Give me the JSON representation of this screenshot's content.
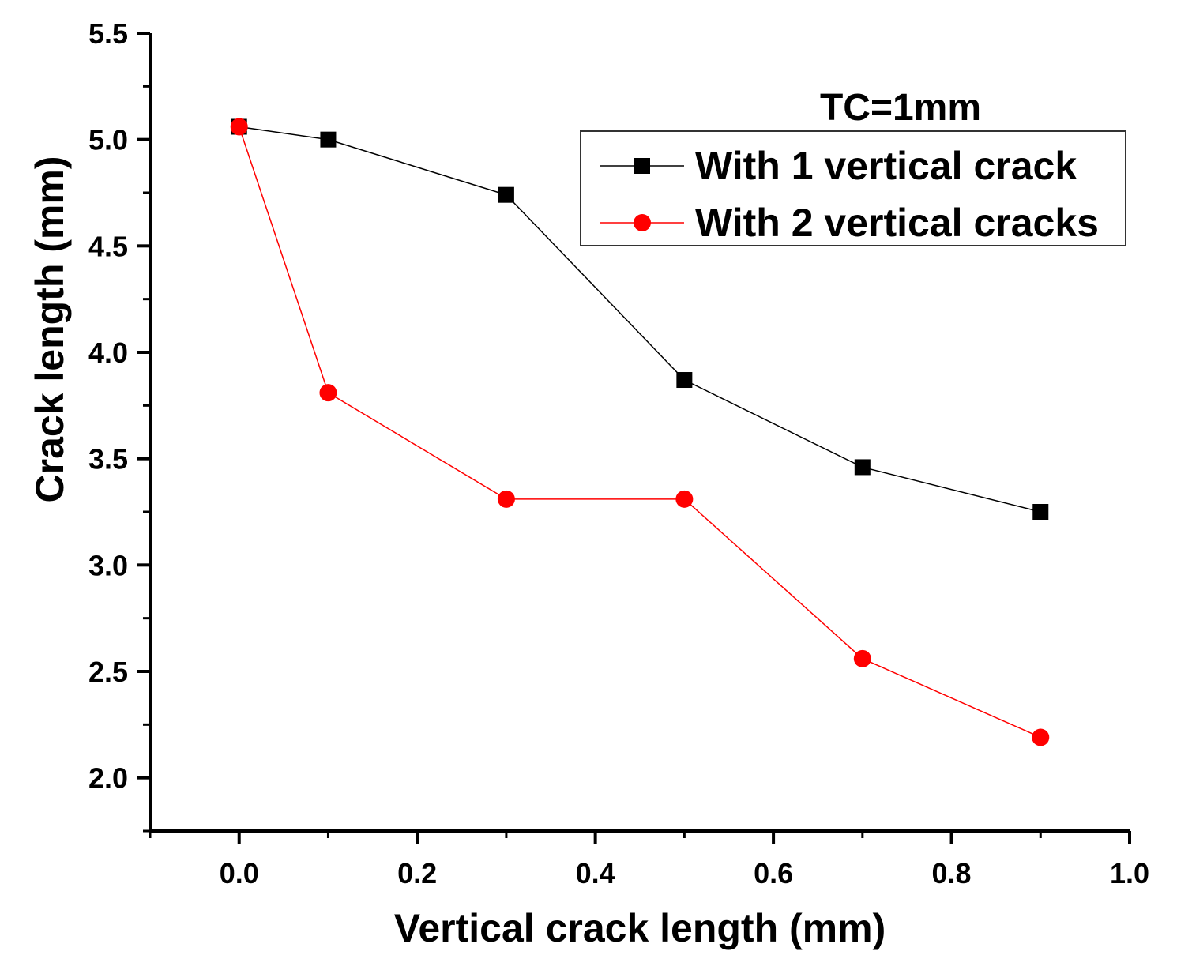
{
  "chart_data": {
    "type": "line",
    "title": "",
    "xlabel": "Vertical crack length (mm)",
    "ylabel": "Crack length (mm)",
    "xlim": [
      -0.1,
      1.0
    ],
    "ylim": [
      1.75,
      5.5
    ],
    "xticks": [
      0.0,
      0.2,
      0.4,
      0.6,
      0.8,
      1.0
    ],
    "xtick_labels": [
      "0.0",
      "0.2",
      "0.4",
      "0.6",
      "0.8",
      "1.0"
    ],
    "yticks": [
      2.0,
      2.5,
      3.0,
      3.5,
      4.0,
      4.5,
      5.0,
      5.5
    ],
    "ytick_labels": [
      "2.0",
      "2.5",
      "3.0",
      "3.5",
      "4.0",
      "4.5",
      "5.0",
      "5.5"
    ],
    "grid": false,
    "legend_position": "top-right",
    "annotation": "TC=1mm",
    "series": [
      {
        "name": "With 1 vertical crack",
        "color": "#000000",
        "marker": "square",
        "x": [
          0.0,
          0.1,
          0.3,
          0.5,
          0.7,
          0.9
        ],
        "y": [
          5.06,
          5.0,
          4.74,
          3.87,
          3.46,
          3.25
        ]
      },
      {
        "name": "With 2 vertical cracks",
        "color": "#ff0000",
        "marker": "circle",
        "x": [
          0.0,
          0.1,
          0.3,
          0.5,
          0.7,
          0.9
        ],
        "y": [
          5.06,
          3.81,
          3.31,
          3.31,
          2.56,
          2.19
        ]
      }
    ]
  }
}
